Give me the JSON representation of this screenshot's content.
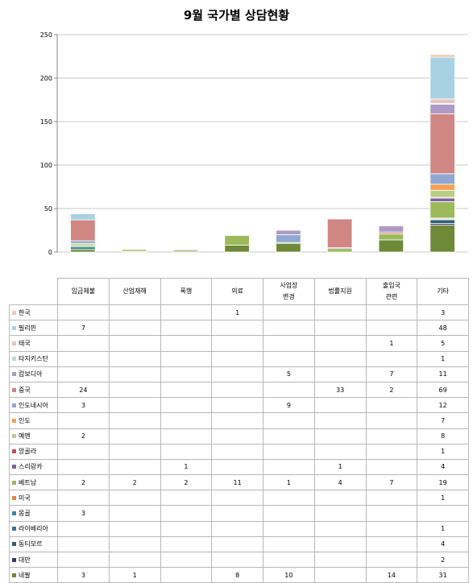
{
  "chart_data": {
    "type": "bar",
    "stacked": true,
    "title": "9월 국가별 상담현황",
    "ylim": [
      0,
      250
    ],
    "yticks": [
      0,
      50,
      100,
      150,
      200,
      250
    ],
    "grid": true,
    "legend": "table-left",
    "categories": [
      [
        "임금체불"
      ],
      [
        "산업재해"
      ],
      [
        "폭행"
      ],
      [
        "의료"
      ],
      [
        "사업장",
        "변경"
      ],
      [
        "법률지원"
      ],
      [
        "출입국",
        "관련"
      ],
      [
        "기타"
      ]
    ],
    "series": [
      {
        "name": "한국",
        "color": "#f4c7b0",
        "values": [
          null,
          null,
          null,
          1,
          null,
          null,
          null,
          3
        ]
      },
      {
        "name": "필리핀",
        "color": "#a8d2e2",
        "values": [
          7,
          null,
          null,
          null,
          null,
          null,
          null,
          48
        ]
      },
      {
        "name": "태국",
        "color": "#ecc0bd",
        "values": [
          null,
          null,
          null,
          null,
          null,
          null,
          1,
          5
        ]
      },
      {
        "name": "타지키스탄",
        "color": "#b5d9e8",
        "values": [
          null,
          null,
          null,
          null,
          null,
          null,
          null,
          1
        ]
      },
      {
        "name": "캄보디아",
        "color": "#ad9ac4",
        "values": [
          null,
          null,
          null,
          null,
          5,
          null,
          7,
          11
        ]
      },
      {
        "name": "중국",
        "color": "#d08683",
        "values": [
          24,
          null,
          null,
          null,
          null,
          33,
          2,
          69
        ]
      },
      {
        "name": "인도네시아",
        "color": "#8ea8d2",
        "values": [
          3,
          null,
          null,
          null,
          9,
          null,
          null,
          12
        ]
      },
      {
        "name": "인도",
        "color": "#f4a055",
        "values": [
          null,
          null,
          null,
          null,
          null,
          null,
          null,
          7
        ]
      },
      {
        "name": "예멘",
        "color": "#b9cd85",
        "values": [
          2,
          null,
          null,
          null,
          null,
          null,
          null,
          8
        ]
      },
      {
        "name": "앙골라",
        "color": "#c44b4b",
        "values": [
          null,
          null,
          null,
          null,
          null,
          null,
          null,
          1
        ]
      },
      {
        "name": "스리랑카",
        "color": "#7c62a3",
        "values": [
          null,
          null,
          1,
          null,
          null,
          1,
          null,
          4
        ]
      },
      {
        "name": "베트남",
        "color": "#9cba5c",
        "values": [
          2,
          2,
          2,
          11,
          1,
          4,
          7,
          19
        ]
      },
      {
        "name": "미국",
        "color": "#e8853b",
        "values": [
          null,
          null,
          null,
          null,
          null,
          null,
          null,
          1
        ]
      },
      {
        "name": "몽골",
        "color": "#34869b",
        "values": [
          3,
          null,
          null,
          null,
          null,
          null,
          null,
          null
        ]
      },
      {
        "name": "라이베리아",
        "color": "#3c6ca0",
        "values": [
          null,
          null,
          null,
          null,
          null,
          null,
          null,
          1
        ]
      },
      {
        "name": "동티모르",
        "color": "#2b5f70",
        "values": [
          null,
          null,
          null,
          null,
          null,
          null,
          null,
          4
        ]
      },
      {
        "name": "대만",
        "color": "#3e3566",
        "values": [
          null,
          null,
          null,
          null,
          null,
          null,
          null,
          2
        ]
      },
      {
        "name": "네팔",
        "color": "#6e8a38",
        "values": [
          3,
          1,
          null,
          8,
          10,
          null,
          14,
          31
        ]
      }
    ]
  }
}
